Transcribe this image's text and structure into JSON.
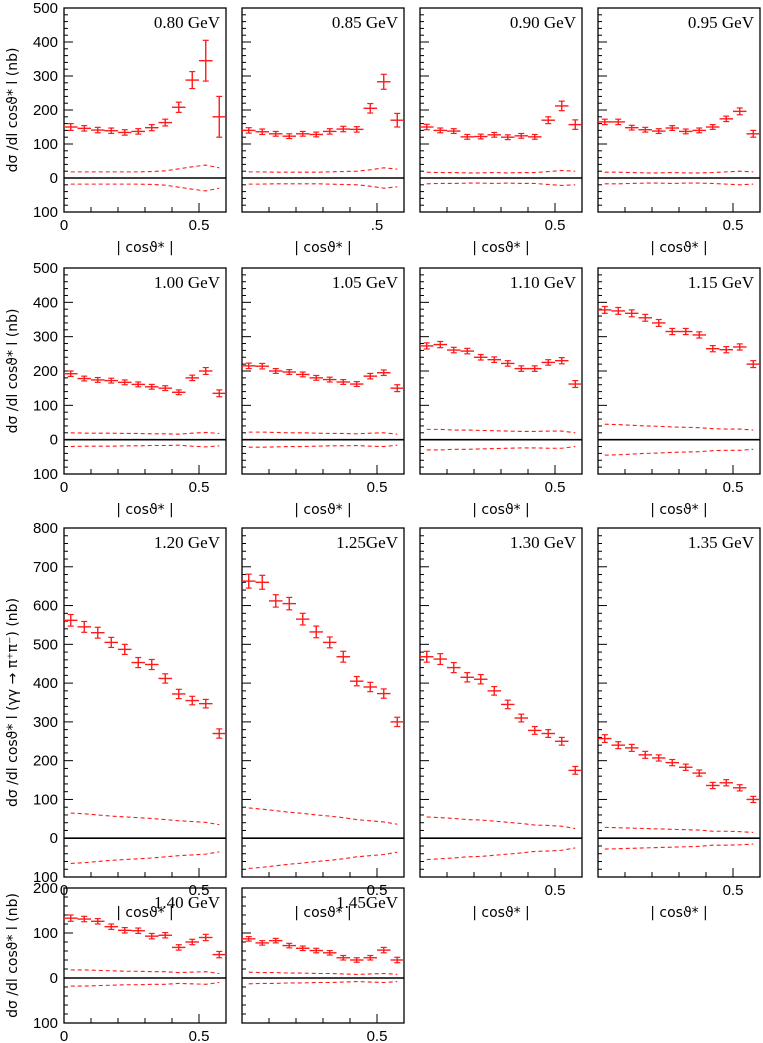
{
  "chart_data": {
    "type": "scatter",
    "figure": "Differential cross section dσ/d|cosϑ*| (nb) vs |cosϑ*| in energy bins",
    "series_style": {
      "color": "#ff1a1a",
      "markers": "error-bar crosses",
      "bands": "dashed systematic bands"
    },
    "xlabel": "| cosϑ* |",
    "xlim": [
      0,
      0.6
    ],
    "x_centers": [
      0.025,
      0.075,
      0.125,
      0.175,
      0.225,
      0.275,
      0.325,
      0.375,
      0.425,
      0.475,
      0.525,
      0.575
    ],
    "rows": [
      {
        "ylabel": "dσ /dl cosϑ* l (nb)",
        "ylim": [
          -100,
          500
        ],
        "yticks": [
          {
            "v": 500,
            "t": "500"
          },
          {
            "v": 400,
            "t": "400"
          },
          {
            "v": 300,
            "t": "300"
          },
          {
            "v": 200,
            "t": "200"
          },
          {
            "v": 100,
            "t": "100"
          },
          {
            "v": 0,
            "t": "0"
          },
          {
            "v": -100,
            "t": "100"
          }
        ]
      },
      {
        "ylabel": "dσ /dl cosϑ* l (nb)",
        "ylim": [
          -100,
          500
        ],
        "yticks": [
          {
            "v": 500,
            "t": "500"
          },
          {
            "v": 400,
            "t": "400"
          },
          {
            "v": 300,
            "t": "300"
          },
          {
            "v": 200,
            "t": "200"
          },
          {
            "v": 100,
            "t": "100"
          },
          {
            "v": 0,
            "t": "0"
          },
          {
            "v": -100,
            "t": "100"
          }
        ]
      },
      {
        "ylabel": "dσ /dl cosϑ* l (γγ → π⁺π⁻) (nb)",
        "ylim": [
          -100,
          800
        ],
        "yticks": [
          {
            "v": 800,
            "t": "800"
          },
          {
            "v": 700,
            "t": "700"
          },
          {
            "v": 600,
            "t": "600"
          },
          {
            "v": 500,
            "t": "500"
          },
          {
            "v": 400,
            "t": "400"
          },
          {
            "v": 300,
            "t": "300"
          },
          {
            "v": 200,
            "t": "200"
          },
          {
            "v": 100,
            "t": "100"
          },
          {
            "v": 0,
            "t": "0"
          },
          {
            "v": -100,
            "t": "100"
          }
        ]
      },
      {
        "ylabel": "dσ /dl cosϑ* l (nb)",
        "ylim": [
          -100,
          200
        ],
        "yticks": [
          {
            "v": 200,
            "t": "200"
          },
          {
            "v": 100,
            "t": "100"
          },
          {
            "v": 0,
            "t": "0"
          },
          {
            "v": -100,
            "t": "100"
          }
        ]
      }
    ],
    "panels": [
      {
        "row": 0,
        "col": 0,
        "title": "0.80 GeV",
        "xticks": [
          {
            "v": 0,
            "t": "0"
          },
          {
            "v": 0.5,
            "t": "0.5"
          }
        ],
        "values": [
          150,
          146,
          141,
          139,
          134,
          137,
          148,
          163,
          208,
          288,
          345,
          180
        ],
        "errors": [
          10,
          8,
          8,
          8,
          8,
          8,
          9,
          10,
          15,
          25,
          60,
          60
        ],
        "band_hi": [
          18,
          18,
          18,
          18,
          18,
          18,
          19,
          21,
          27,
          33,
          38,
          30
        ]
      },
      {
        "row": 0,
        "col": 1,
        "title": "0.85 GeV",
        "xticks": [
          {
            "v": 0,
            "t": ""
          },
          {
            "v": 0.5,
            "t": ".5"
          }
        ],
        "values": [
          140,
          136,
          130,
          123,
          130,
          128,
          137,
          144,
          143,
          205,
          283,
          170
        ],
        "errors": [
          8,
          8,
          7,
          7,
          7,
          7,
          8,
          8,
          8,
          14,
          22,
          20
        ],
        "band_hi": [
          18,
          18,
          17,
          17,
          17,
          17,
          18,
          19,
          20,
          24,
          30,
          26
        ]
      },
      {
        "row": 0,
        "col": 2,
        "title": "0.90 GeV",
        "xticks": [
          {
            "v": 0,
            "t": ""
          },
          {
            "v": 0.5,
            "t": "0.5"
          }
        ],
        "values": [
          150,
          140,
          138,
          121,
          122,
          127,
          120,
          124,
          121,
          170,
          212,
          157
        ],
        "errors": [
          8,
          7,
          7,
          7,
          7,
          7,
          7,
          7,
          7,
          10,
          14,
          14
        ],
        "band_hi": [
          17,
          16,
          16,
          15,
          15,
          16,
          15,
          16,
          16,
          19,
          22,
          20
        ]
      },
      {
        "row": 0,
        "col": 3,
        "title": "0.95 GeV",
        "xticks": [
          {
            "v": 0,
            "t": ""
          },
          {
            "v": 0.5,
            "t": "0.5"
          }
        ],
        "values": [
          165,
          165,
          148,
          142,
          138,
          147,
          137,
          140,
          150,
          174,
          196,
          130
        ],
        "errors": [
          8,
          8,
          7,
          7,
          7,
          7,
          7,
          7,
          7,
          8,
          10,
          10
        ],
        "band_hi": [
          17,
          17,
          16,
          15,
          15,
          16,
          15,
          15,
          16,
          18,
          20,
          18
        ]
      },
      {
        "row": 1,
        "col": 0,
        "title": "1.00 GeV",
        "xticks": [
          {
            "v": 0,
            "t": "0"
          },
          {
            "v": 0.5,
            "t": "0.5"
          }
        ],
        "values": [
          192,
          178,
          174,
          172,
          167,
          161,
          154,
          150,
          138,
          180,
          200,
          135
        ],
        "errors": [
          8,
          7,
          7,
          7,
          7,
          7,
          7,
          7,
          7,
          8,
          10,
          10
        ],
        "band_hi": [
          20,
          19,
          19,
          19,
          18,
          18,
          17,
          17,
          16,
          19,
          21,
          18
        ]
      },
      {
        "row": 1,
        "col": 1,
        "title": "1.05 GeV",
        "xticks": [
          {
            "v": 0,
            "t": ""
          },
          {
            "v": 0.5,
            "t": "0.5"
          }
        ],
        "values": [
          215,
          214,
          200,
          197,
          190,
          180,
          175,
          168,
          162,
          185,
          195,
          150
        ],
        "errors": [
          8,
          8,
          7,
          7,
          7,
          7,
          7,
          7,
          7,
          8,
          8,
          10
        ],
        "band_hi": [
          22,
          22,
          21,
          20,
          20,
          19,
          18,
          18,
          17,
          19,
          20,
          16
        ]
      },
      {
        "row": 1,
        "col": 2,
        "title": "1.10 GeV",
        "xticks": [
          {
            "v": 0,
            "t": ""
          },
          {
            "v": 0.5,
            "t": "0.5"
          }
        ],
        "values": [
          273,
          277,
          261,
          258,
          240,
          233,
          222,
          207,
          207,
          225,
          230,
          162
        ],
        "errors": [
          9,
          9,
          8,
          8,
          8,
          8,
          8,
          8,
          8,
          8,
          9,
          10
        ],
        "band_hi": [
          30,
          30,
          28,
          28,
          27,
          26,
          25,
          24,
          24,
          25,
          25,
          20
        ]
      },
      {
        "row": 1,
        "col": 3,
        "title": "1.15 GeV",
        "xticks": [
          {
            "v": 0,
            "t": ""
          },
          {
            "v": 0.5,
            "t": "0.5"
          }
        ],
        "values": [
          378,
          375,
          368,
          355,
          340,
          315,
          315,
          305,
          265,
          262,
          270,
          220
        ],
        "errors": [
          10,
          10,
          10,
          10,
          10,
          9,
          9,
          9,
          9,
          9,
          9,
          10
        ],
        "band_hi": [
          45,
          44,
          42,
          40,
          39,
          37,
          36,
          35,
          32,
          31,
          31,
          28
        ]
      },
      {
        "row": 2,
        "col": 0,
        "title": "1.20 GeV",
        "xticks": [
          {
            "v": 0,
            "t": "0"
          },
          {
            "v": 0.5,
            "t": "0.5"
          }
        ],
        "values": [
          562,
          545,
          530,
          505,
          487,
          453,
          448,
          412,
          372,
          355,
          347,
          270
        ],
        "errors": [
          15,
          14,
          14,
          13,
          13,
          13,
          13,
          12,
          12,
          11,
          11,
          12
        ],
        "band_hi": [
          65,
          63,
          60,
          57,
          55,
          53,
          51,
          48,
          45,
          43,
          41,
          35
        ]
      },
      {
        "row": 2,
        "col": 1,
        "title": "1.25GeV",
        "xticks": [
          {
            "v": 0,
            "t": ""
          },
          {
            "v": 0.5,
            "t": "0.5"
          }
        ],
        "values": [
          663,
          660,
          612,
          605,
          565,
          532,
          505,
          468,
          405,
          390,
          373,
          300
        ],
        "errors": [
          18,
          18,
          16,
          16,
          15,
          15,
          14,
          14,
          12,
          12,
          12,
          12
        ],
        "band_hi": [
          78,
          75,
          71,
          67,
          64,
          60,
          57,
          53,
          48,
          45,
          42,
          36
        ]
      },
      {
        "row": 2,
        "col": 2,
        "title": "1.30 GeV",
        "xticks": [
          {
            "v": 0,
            "t": ""
          },
          {
            "v": 0.5,
            "t": "0.5"
          }
        ],
        "values": [
          468,
          462,
          440,
          415,
          410,
          380,
          345,
          310,
          278,
          270,
          250,
          175
        ],
        "errors": [
          14,
          14,
          13,
          12,
          12,
          11,
          11,
          10,
          10,
          10,
          10,
          10
        ],
        "band_hi": [
          55,
          53,
          51,
          48,
          47,
          44,
          41,
          38,
          34,
          33,
          31,
          25
        ]
      },
      {
        "row": 2,
        "col": 3,
        "title": "1.35 GeV",
        "xticks": [
          {
            "v": 0,
            "t": ""
          },
          {
            "v": 0.5,
            "t": "0.5"
          }
        ],
        "values": [
          257,
          240,
          233,
          215,
          207,
          195,
          183,
          168,
          136,
          143,
          130,
          100
        ],
        "errors": [
          10,
          9,
          9,
          9,
          8,
          8,
          8,
          8,
          8,
          8,
          8,
          8
        ],
        "band_hi": [
          28,
          27,
          26,
          25,
          24,
          23,
          22,
          21,
          18,
          18,
          17,
          15
        ]
      },
      {
        "row": 3,
        "col": 0,
        "title": "1.40 GeV",
        "xticks": [
          {
            "v": 0,
            "t": "0"
          },
          {
            "v": 0.5,
            "t": "0.5"
          }
        ],
        "values": [
          133,
          131,
          126,
          114,
          106,
          105,
          93,
          95,
          68,
          80,
          90,
          52
        ],
        "errors": [
          7,
          6,
          6,
          6,
          6,
          6,
          6,
          6,
          6,
          6,
          7,
          7
        ],
        "band_hi": [
          18,
          18,
          17,
          16,
          15,
          15,
          14,
          14,
          12,
          13,
          14,
          10
        ]
      },
      {
        "row": 3,
        "col": 1,
        "title": "1.45GeV",
        "xticks": [
          {
            "v": 0,
            "t": ""
          },
          {
            "v": 0.5,
            "t": "0.5"
          }
        ],
        "values": [
          87,
          78,
          83,
          72,
          66,
          61,
          56,
          45,
          40,
          45,
          62,
          40
        ],
        "errors": [
          5,
          5,
          5,
          5,
          5,
          5,
          5,
          5,
          5,
          5,
          6,
          6
        ],
        "band_hi": [
          13,
          12,
          12,
          11,
          11,
          10,
          10,
          9,
          8,
          9,
          10,
          8
        ]
      }
    ]
  }
}
